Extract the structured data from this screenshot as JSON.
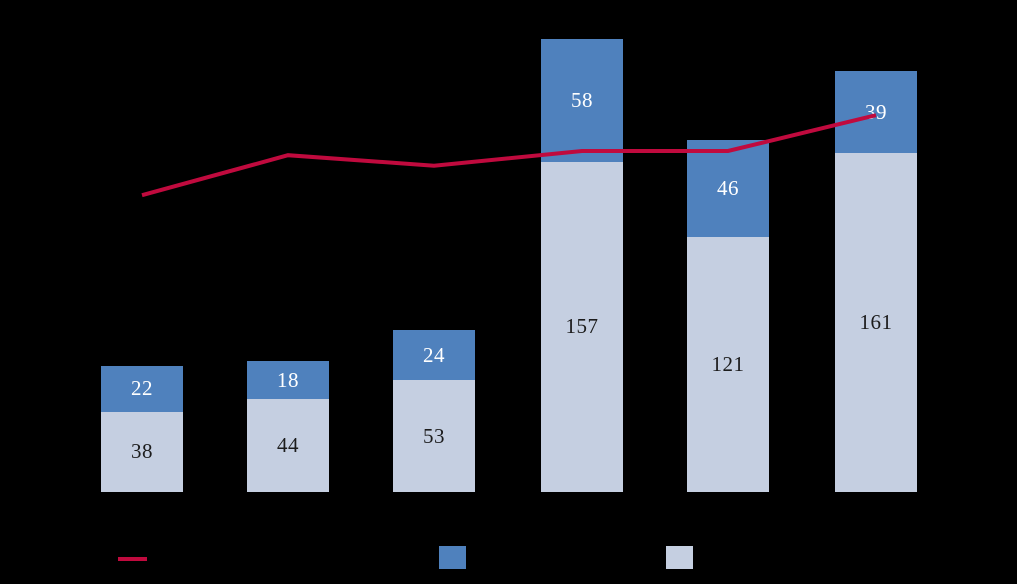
{
  "chart_data": {
    "type": "combo-stacked-bar-line",
    "categories": [
      "",
      "",
      "",
      "",
      "",
      ""
    ],
    "series": [
      {
        "name": "stacked-bar-bottom-segment",
        "chart_type": "bar",
        "color": "#C5CFE1",
        "label_color": "#1C1C1C",
        "values": [
          38,
          44,
          53,
          157,
          121,
          161
        ]
      },
      {
        "name": "stacked-bar-top-segment",
        "chart_type": "bar",
        "color": "#4F81BD",
        "label_color": "#FFFFFF",
        "values": [
          22,
          18,
          24,
          58,
          46,
          39
        ]
      },
      {
        "name": "trend-line",
        "chart_type": "line",
        "color": "#C00A3E",
        "values": [
          141,
          160,
          155,
          162,
          162,
          179
        ],
        "estimated": true
      }
    ],
    "legend": {
      "position": "bottom",
      "entries": [
        {
          "marker": "line",
          "color": "#C00A3E",
          "label": ""
        },
        {
          "marker": "square",
          "color": "#4F81BD",
          "label": ""
        },
        {
          "marker": "square",
          "color": "#C5CFE1",
          "label": ""
        }
      ]
    },
    "axes": {
      "x_tick_labels_visible": false,
      "y_tick_labels_visible": false,
      "gridlines": false
    },
    "background": "#000000"
  }
}
